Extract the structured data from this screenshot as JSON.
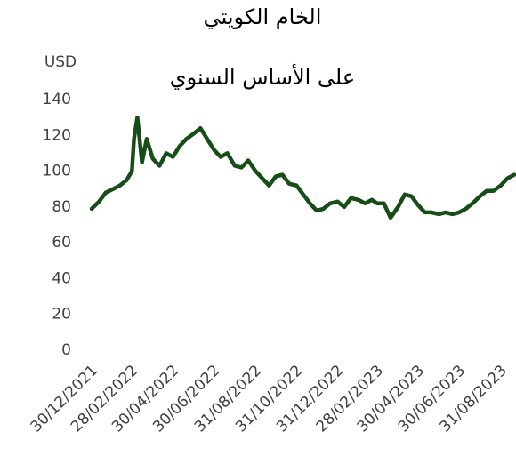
{
  "chart_data": {
    "type": "line",
    "title": [
      "الخام الكويتي",
      "على الأساس السنوي"
    ],
    "y_axis_label": "USD",
    "x": [
      "30/12/2021",
      "10/01/2022",
      "20/01/2022",
      "31/01/2022",
      "10/02/2022",
      "20/02/2022",
      "28/02/2022",
      "03/03/2022",
      "08/03/2022",
      "15/03/2022",
      "22/03/2022",
      "31/03/2022",
      "10/04/2022",
      "20/04/2022",
      "30/04/2022",
      "10/05/2022",
      "20/05/2022",
      "31/05/2022",
      "10/06/2022",
      "20/06/2022",
      "30/06/2022",
      "10/07/2022",
      "20/07/2022",
      "31/07/2022",
      "10/08/2022",
      "20/08/2022",
      "31/08/2022",
      "10/09/2022",
      "20/09/2022",
      "30/09/2022",
      "10/10/2022",
      "20/10/2022",
      "31/10/2022",
      "10/11/2022",
      "20/11/2022",
      "30/11/2022",
      "10/12/2022",
      "20/12/2022",
      "31/12/2022",
      "10/01/2023",
      "20/01/2023",
      "31/01/2023",
      "10/02/2023",
      "20/02/2023",
      "28/02/2023",
      "10/03/2023",
      "20/03/2023",
      "31/03/2023",
      "10/04/2023",
      "20/04/2023",
      "30/04/2023",
      "10/05/2023",
      "20/05/2023",
      "31/05/2023",
      "10/06/2023",
      "20/06/2023",
      "30/06/2023",
      "10/07/2023",
      "20/07/2023",
      "31/07/2023",
      "10/08/2023",
      "20/08/2023",
      "31/08/2023",
      "10/09/2023",
      "20/09/2023"
    ],
    "series": [
      {
        "name": "الخام الكويتي",
        "color": "#174d17",
        "values": [
          79,
          83,
          88,
          90,
          92,
          95,
          100,
          118,
          130,
          105,
          118,
          107,
          103,
          110,
          108,
          114,
          118,
          121,
          124,
          118,
          112,
          108,
          110,
          103,
          102,
          106,
          100,
          96,
          92,
          97,
          98,
          93,
          92,
          87,
          82,
          78,
          79,
          82,
          83,
          80,
          85,
          84,
          82,
          84,
          82,
          82,
          74,
          80,
          87,
          86,
          81,
          77,
          77,
          76,
          77,
          76,
          77,
          79,
          82,
          86,
          89,
          89,
          92,
          96,
          98
        ]
      }
    ],
    "xlim": [
      "30/12/2021",
      "20/09/2023"
    ],
    "xticks": [
      "30/12/2021",
      "28/02/2022",
      "30/04/2022",
      "30/06/2022",
      "31/08/2022",
      "31/10/2022",
      "31/12/2022",
      "28/02/2023",
      "30/04/2023",
      "30/06/2023",
      "31/08/2023"
    ],
    "ylim": [
      0,
      140
    ],
    "yticks": [
      0,
      20,
      40,
      60,
      80,
      100,
      120,
      140
    ],
    "grid": false,
    "legend": false
  }
}
